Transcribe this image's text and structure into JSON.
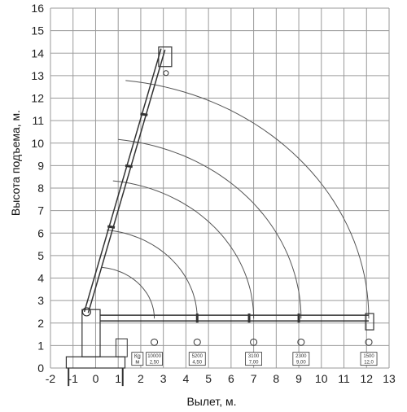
{
  "axes": {
    "x_label": "Вылет, м.",
    "y_label": "Высота подъема, м.",
    "x_ticks": [
      "-2",
      "-1",
      "0",
      "1",
      "2",
      "3",
      "4",
      "5",
      "6",
      "7",
      "8",
      "9",
      "10",
      "11",
      "12",
      "13"
    ],
    "y_ticks": [
      "0",
      "1",
      "2",
      "3",
      "4",
      "5",
      "6",
      "7",
      "8",
      "9",
      "10",
      "11",
      "12",
      "13",
      "14",
      "15",
      "16"
    ],
    "x_range": [
      -2,
      13
    ],
    "y_range": [
      0,
      16
    ]
  },
  "crane": {
    "boom_angle_base": [
      -0.5,
      2.5
    ],
    "boom_tip": [
      2.9,
      14.2
    ],
    "horizontal_boom_y": 2.35,
    "horizontal_boom_end_x": 12.1,
    "section_marks_vertical_y": [
      6.3,
      9.0,
      11.3
    ],
    "section_marks_horizontal_x": [
      4.5,
      6.8,
      9.0
    ]
  },
  "reach_arcs": [
    {
      "radius_end_x": 2.6
    },
    {
      "radius_end_x": 4.5
    },
    {
      "radius_end_x": 7.0
    },
    {
      "radius_end_x": 9.1
    },
    {
      "radius_end_x": 12.1
    }
  ],
  "load_legend": {
    "unit_label": "Кg",
    "unit_sub": "м"
  },
  "load_points": [
    {
      "x": 2.6,
      "load": "10000",
      "radius": "2,50"
    },
    {
      "x": 4.5,
      "load": "5200",
      "radius": "4,50"
    },
    {
      "x": 7.0,
      "load": "3100",
      "radius": "7,00"
    },
    {
      "x": 9.1,
      "load": "2300",
      "radius": "9,00"
    },
    {
      "x": 12.1,
      "load": "1500",
      "radius": "12,0"
    }
  ],
  "colors": {
    "grid": "#9a9a9a",
    "line": "#333333",
    "arc": "#555555"
  }
}
